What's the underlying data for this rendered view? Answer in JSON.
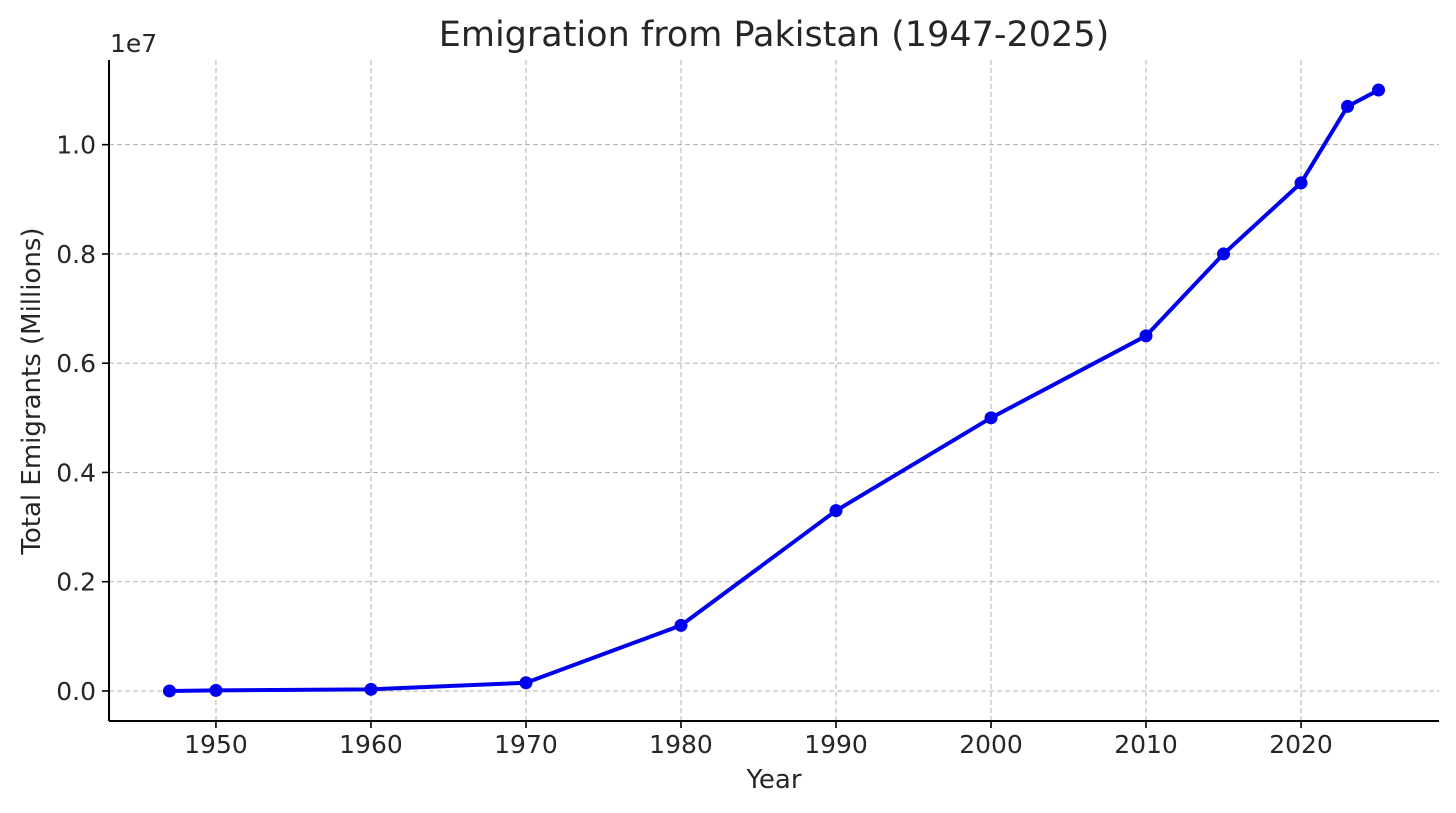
{
  "chart_data": {
    "type": "line",
    "title": "Emigration from Pakistan (1947-2025)",
    "xlabel": "Year",
    "ylabel": "Total Emigrants (Millions)",
    "y_offset_label": "1e7",
    "xlim": [
      1943.1,
      2028.9
    ],
    "ylim": [
      -550000,
      11550000
    ],
    "x_ticks": [
      1950,
      1960,
      1970,
      1980,
      1990,
      2000,
      2010,
      2020
    ],
    "x_tick_labels": [
      "1950",
      "1960",
      "1970",
      "1980",
      "1990",
      "2000",
      "2010",
      "2020"
    ],
    "y_ticks": [
      0,
      2000000,
      4000000,
      6000000,
      8000000,
      10000000
    ],
    "y_tick_labels": [
      "0.0",
      "0.2",
      "0.4",
      "0.6",
      "0.8",
      "1.0"
    ],
    "grid": true,
    "series": [
      {
        "color": "#0000ee",
        "marker": "circle",
        "x": [
          1947,
          1950,
          1960,
          1970,
          1980,
          1990,
          2000,
          2010,
          2015,
          2020,
          2023,
          2025
        ],
        "values": [
          0,
          10000,
          30000,
          150000,
          1200000,
          3300000,
          5000000,
          6500000,
          8000000,
          9300000,
          10700000,
          11000000
        ]
      }
    ]
  }
}
